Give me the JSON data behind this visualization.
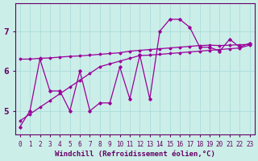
{
  "xlabel": "Windchill (Refroidissement éolien,°C)",
  "background_color": "#cceee8",
  "grid_color": "#aaddda",
  "line_color": "#990099",
  "x": [
    0,
    1,
    2,
    3,
    4,
    5,
    6,
    7,
    8,
    9,
    10,
    11,
    12,
    13,
    14,
    15,
    16,
    17,
    18,
    19,
    20,
    21,
    22,
    23
  ],
  "y_raw": [
    4.6,
    5.0,
    6.3,
    5.5,
    5.5,
    5.0,
    6.0,
    5.0,
    5.2,
    5.2,
    6.1,
    5.3,
    6.4,
    5.3,
    7.0,
    7.3,
    7.3,
    7.1,
    6.6,
    6.6,
    6.5,
    6.8,
    6.6,
    6.7
  ],
  "y_linear": [
    4.75,
    4.92,
    5.09,
    5.26,
    5.43,
    5.6,
    5.77,
    5.94,
    6.11,
    6.18,
    6.25,
    6.32,
    6.39,
    6.4,
    6.42,
    6.44,
    6.46,
    6.48,
    6.5,
    6.52,
    6.54,
    6.56,
    6.58,
    6.65
  ],
  "y_flat": [
    6.3,
    6.3,
    6.32,
    6.33,
    6.35,
    6.37,
    6.38,
    6.4,
    6.42,
    6.44,
    6.46,
    6.5,
    6.52,
    6.54,
    6.56,
    6.58,
    6.6,
    6.62,
    6.64,
    6.65,
    6.64,
    6.65,
    6.66,
    6.67
  ],
  "ylim": [
    4.4,
    7.7
  ],
  "yticks": [
    5,
    6,
    7
  ],
  "xticks": [
    0,
    1,
    2,
    3,
    4,
    5,
    6,
    7,
    8,
    9,
    10,
    11,
    12,
    13,
    14,
    15,
    16,
    17,
    18,
    19,
    20,
    21,
    22,
    23
  ],
  "font_color": "#660066",
  "tick_fontsize": 5.5,
  "xlabel_fontsize": 6.5,
  "ytick_fontsize": 8
}
